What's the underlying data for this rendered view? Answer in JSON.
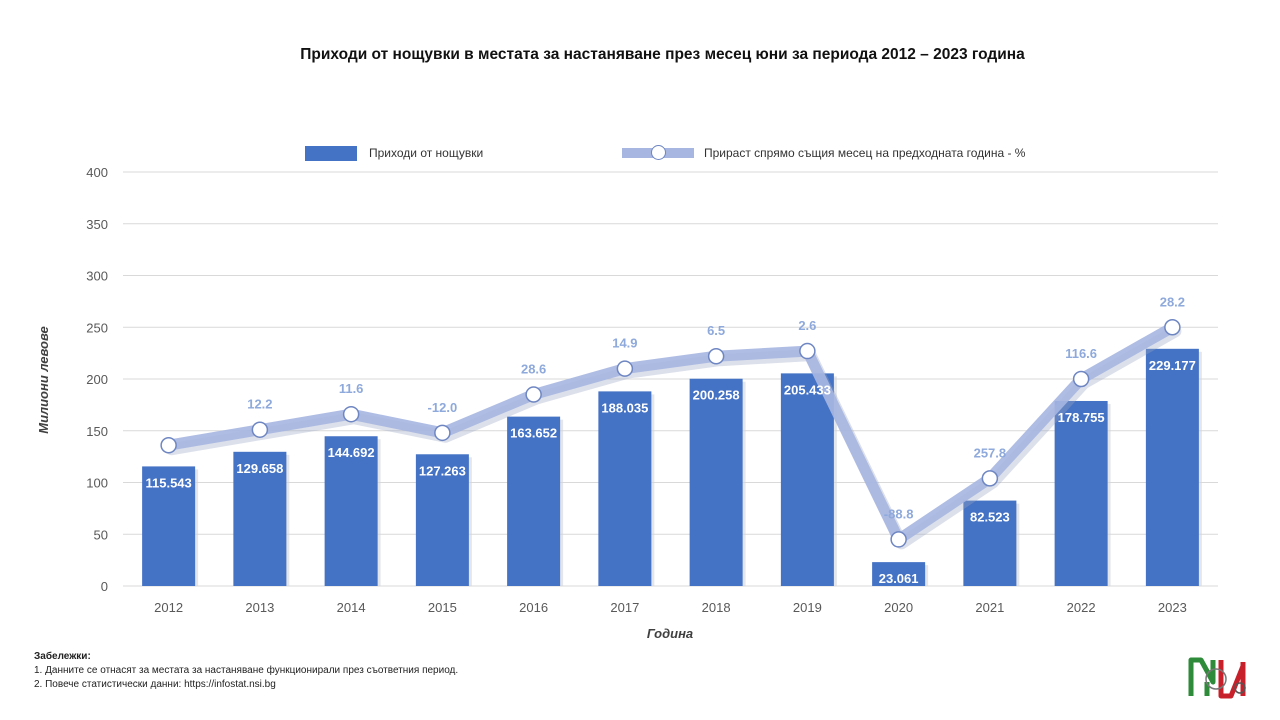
{
  "chart_data": {
    "type": "bar",
    "title": "Приходи от нощувки в местата за настаняване през месец юни за периода 2012 – 2023 година",
    "xlabel": "Година",
    "ylabel": "Милиони левове",
    "ylim": [
      0,
      400
    ],
    "yticks": [
      "0",
      "50",
      "100",
      "150",
      "200",
      "250",
      "300",
      "350",
      "400"
    ],
    "grid": true,
    "legend_position": "top",
    "categories": [
      "2012",
      "2013",
      "2014",
      "2015",
      "2016",
      "2017",
      "2018",
      "2019",
      "2020",
      "2021",
      "2022",
      "2023"
    ],
    "series": [
      {
        "name": "Приходи от нощувки",
        "type": "bar",
        "color": "#4472c4",
        "values": [
          115.543,
          129.658,
          144.692,
          127.263,
          163.652,
          188.035,
          200.258,
          205.433,
          23.061,
          82.523,
          178.755,
          229.177
        ],
        "labels": [
          "115.543",
          "129.658",
          "144.692",
          "127.263",
          "163.652",
          "188.035",
          "200.258",
          "205.433",
          "23.061",
          "82.523",
          "178.755",
          "229.177"
        ]
      },
      {
        "name": "Прираст спрямо същия месец на предходната година - %",
        "type": "line",
        "color": "#a6b6e1",
        "labels": [
          "",
          "12.2",
          "11.6",
          "-12.0",
          "28.6",
          "14.9",
          "6.5",
          "2.6",
          "-88.8",
          "257.8",
          "116.6",
          "28.2"
        ],
        "plotted_positions": [
          136,
          151,
          166,
          148,
          185,
          210,
          222,
          227,
          45,
          104,
          200,
          250
        ]
      }
    ]
  },
  "notes": {
    "heading": "Забележки:",
    "items": [
      "1. Данните се отнасят за местата за настаняване функционирали през съответния период.",
      "2. Повече статистически данни: https://infostat.nsi.bg"
    ]
  },
  "colors": {
    "bar": "#4472c4",
    "line": "#a6b6e1",
    "line_label": "#8ea9db",
    "logo_green": "#2e8b3a",
    "logo_red": "#c8202a"
  }
}
